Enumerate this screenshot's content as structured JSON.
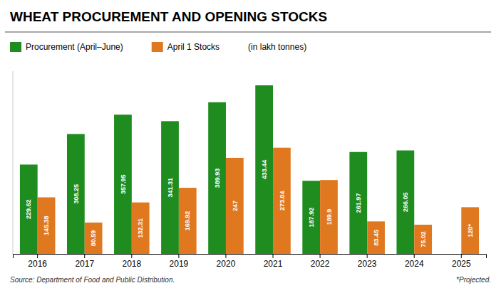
{
  "chart_data": {
    "type": "bar",
    "title": "WHEAT PROCUREMENT AND OPENING STOCKS",
    "categories": [
      "2016",
      "2017",
      "2018",
      "2019",
      "2020",
      "2021",
      "2022",
      "2023",
      "2024",
      "2025"
    ],
    "series": [
      {
        "name": "Procurement (April–June)",
        "color": "#1f8c1f",
        "values": [
          229.62,
          308.25,
          357.95,
          341.31,
          389.93,
          433.44,
          187.92,
          261.97,
          266.05,
          null
        ]
      },
      {
        "name": "April 1 Stocks",
        "color": "#e07820",
        "values": [
          145.38,
          80.59,
          132.31,
          169.92,
          247.0,
          273.04,
          189.9,
          83.45,
          75.02,
          120.0
        ],
        "value_labels": [
          "145.38",
          "80.59",
          "132.31",
          "169.92",
          "247",
          "273.04",
          "189.9",
          "83.45",
          "75.02",
          "120*"
        ]
      }
    ],
    "y_label": "(in lakh tonnes)",
    "annotations": [
      "Source: Department of Food and Public Distribution.",
      "*Projected."
    ],
    "ylim": [
      0,
      470
    ],
    "data_labels": true,
    "tick_labels": "x",
    "grid": false
  }
}
